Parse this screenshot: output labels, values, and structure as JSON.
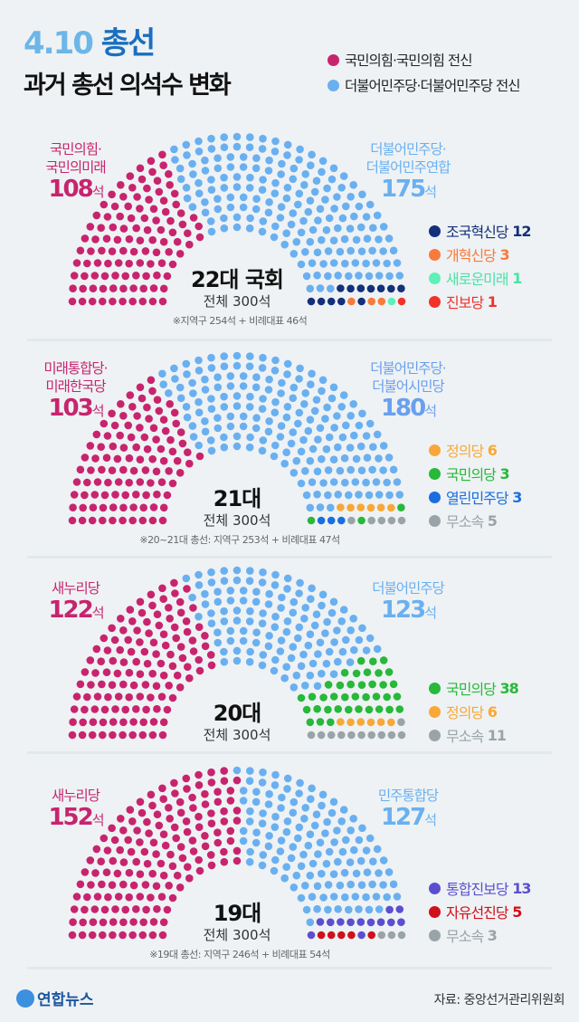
{
  "header": {
    "title_num": "4.10",
    "title_word": "총선",
    "subtitle": "과거 총선 의석수 변화"
  },
  "top_legend": [
    {
      "label": "국민의힘·국민의힘 전신",
      "color": "#c8246e"
    },
    {
      "label": "더불어민주당·더불어민주당 전신",
      "color": "#6ab0f0"
    }
  ],
  "chart_data": [
    {
      "type": "parliament",
      "title": "22대 국회",
      "total_label": "전체 300석",
      "total": 300,
      "note": "※지역구 254석 + 비례대표 46석",
      "left_label": [
        "국민의힘·",
        "국민의미래"
      ],
      "left_value": "108",
      "right_label": [
        "더불어민주당·",
        "더불어민주연합"
      ],
      "right_value": "175",
      "seat_unit": "석",
      "parties": [
        {
          "name": "국민의힘·국민의미래",
          "seats": 108,
          "color": "#c8246e"
        },
        {
          "name": "더불어민주당·더불어민주연합",
          "seats": 175,
          "color": "#6ab0f0"
        },
        {
          "name": "조국혁신당",
          "seats": 12,
          "color": "#14307a",
          "legend": "조국혁신당",
          "value": "12"
        },
        {
          "name": "개혁신당",
          "seats": 3,
          "color": "#f87a3c",
          "legend": "개혁신당",
          "value": "3"
        },
        {
          "name": "새로운미래",
          "seats": 1,
          "color": "#5ef0b8",
          "legend": "새로운미래",
          "value": "1"
        },
        {
          "name": "진보당",
          "seats": 1,
          "color": "#f0322a",
          "legend": "진보당",
          "value": "1"
        }
      ]
    },
    {
      "type": "parliament",
      "title": "21대",
      "total_label": "전체 300석",
      "total": 300,
      "note": "※20~21대 총선: 지역구 253석 + 비례대표 47석",
      "left_label": [
        "미래통합당·",
        "미래한국당"
      ],
      "left_value": "103",
      "right_label": [
        "더불어민주당·",
        "더불어시민당"
      ],
      "right_value": "180",
      "seat_unit": "석",
      "parties": [
        {
          "name": "미래통합당·미래한국당",
          "seats": 103,
          "color": "#c8246e"
        },
        {
          "name": "더불어민주당·더불어시민당",
          "seats": 180,
          "color": "#6ab0f0"
        },
        {
          "name": "정의당",
          "seats": 6,
          "color": "#f8a838",
          "legend": "정의당",
          "value": "6"
        },
        {
          "name": "국민의당",
          "seats": 3,
          "color": "#28b83a",
          "legend": "국민의당",
          "value": "3"
        },
        {
          "name": "열린민주당",
          "seats": 3,
          "color": "#1a6ee0",
          "legend": "열린민주당",
          "value": "3"
        },
        {
          "name": "무소속",
          "seats": 5,
          "color": "#9aa4a8",
          "legend": "무소속",
          "value": "5"
        }
      ]
    },
    {
      "type": "parliament",
      "title": "20대",
      "total_label": "전체 300석",
      "total": 300,
      "note": "",
      "left_label": [
        "새누리당"
      ],
      "left_value": "122",
      "right_label": [
        "더불어민주당"
      ],
      "right_value": "123",
      "seat_unit": "석",
      "parties": [
        {
          "name": "새누리당",
          "seats": 122,
          "color": "#c8246e"
        },
        {
          "name": "더불어민주당",
          "seats": 123,
          "color": "#6ab0f0"
        },
        {
          "name": "국민의당",
          "seats": 38,
          "color": "#28b83a",
          "legend": "국민의당",
          "value": "38"
        },
        {
          "name": "정의당",
          "seats": 6,
          "color": "#f8a838",
          "legend": "정의당",
          "value": "6"
        },
        {
          "name": "무소속",
          "seats": 11,
          "color": "#9aa4a8",
          "legend": "무소속",
          "value": "11"
        }
      ]
    },
    {
      "type": "parliament",
      "title": "19대",
      "total_label": "전체 300석",
      "total": 300,
      "note": "※19대 총선: 지역구 246석 + 비례대표 54석",
      "left_label": [
        "새누리당"
      ],
      "left_value": "152",
      "right_label": [
        "민주통합당"
      ],
      "right_value": "127",
      "seat_unit": "석",
      "parties": [
        {
          "name": "새누리당",
          "seats": 152,
          "color": "#c8246e"
        },
        {
          "name": "민주통합당",
          "seats": 127,
          "color": "#6ab0f0"
        },
        {
          "name": "통합진보당",
          "seats": 13,
          "color": "#5b4fd0",
          "legend": "통합진보당",
          "value": "13"
        },
        {
          "name": "자유선진당",
          "seats": 5,
          "color": "#d0101a",
          "legend": "자유선진당",
          "value": "5"
        },
        {
          "name": "무소속",
          "seats": 3,
          "color": "#9aa4a8",
          "legend": "무소속",
          "value": "3"
        }
      ]
    }
  ],
  "footer": {
    "logo": "연합뉴스",
    "source": "자료: 중앙선거관리위원회"
  }
}
